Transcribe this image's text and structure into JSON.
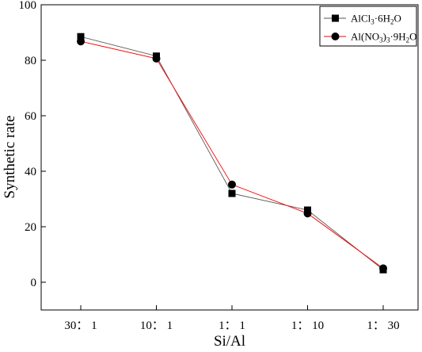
{
  "chart_data": {
    "type": "line",
    "categories": [
      "30： 1",
      "10： 1",
      "1： 1",
      "1： 10",
      "1： 30"
    ],
    "xlabel": "Si/Al",
    "ylabel": "Synthetic rate",
    "ylim": [
      -10,
      100
    ],
    "yticks": [
      0,
      20,
      40,
      60,
      80,
      100
    ],
    "grid": false,
    "legend_position": "top-right",
    "series": [
      {
        "name": "AlCl3·6H2O",
        "legend": {
          "base": "AlCl",
          "sub1": "3",
          "mid": "·6H",
          "sub2": "2",
          "end": "O"
        },
        "marker": "square",
        "color": "#555555",
        "marker_color": "#000000",
        "values": [
          88.5,
          81.5,
          32,
          26,
          4.5
        ]
      },
      {
        "name": "Al(NO3)3·9H2O",
        "legend": {
          "base": "Al(NO",
          "sub1": "3",
          "mid": ")",
          "sub2": "3",
          "mid2": "·9H",
          "sub3": "2",
          "end": "O"
        },
        "marker": "circle",
        "color": "#ff0000",
        "marker_color": "#000000",
        "values": [
          86.8,
          80.6,
          35.2,
          24.8,
          5
        ]
      }
    ]
  }
}
